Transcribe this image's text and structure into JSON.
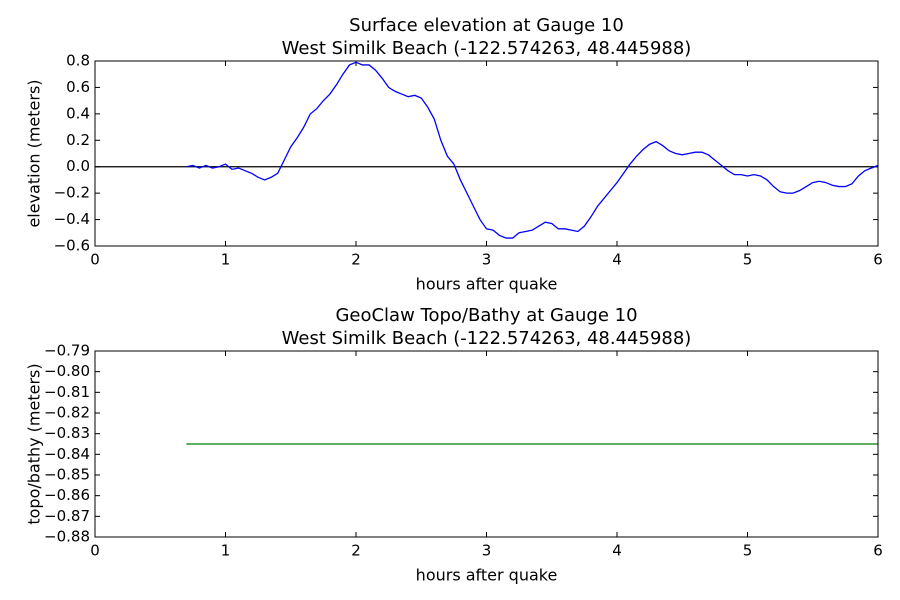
{
  "chart_data": [
    {
      "type": "line",
      "title": "Surface elevation at Gauge 10",
      "subtitle": "West Similk Beach  (-122.574263, 48.445988)",
      "xlabel": "hours after quake",
      "ylabel": "elevation (meters)",
      "xlim": [
        0,
        6
      ],
      "xticks": [
        0,
        1,
        2,
        3,
        4,
        5,
        6
      ],
      "ylim": [
        -0.6,
        0.8
      ],
      "yticks": [
        {
          "value": -0.6,
          "label": "−0.6"
        },
        {
          "value": -0.4,
          "label": "−0.4"
        },
        {
          "value": -0.2,
          "label": "−0.2"
        },
        {
          "value": 0,
          "label": "0.0"
        },
        0.2,
        0.4,
        0.6,
        0.8
      ],
      "hline": 0,
      "series": [
        {
          "color": "#0000ff",
          "x": [
            0.7,
            0.75,
            0.8,
            0.85,
            0.9,
            0.95,
            1.0,
            1.05,
            1.1,
            1.15,
            1.2,
            1.25,
            1.3,
            1.35,
            1.4,
            1.45,
            1.5,
            1.55,
            1.6,
            1.65,
            1.7,
            1.75,
            1.8,
            1.85,
            1.9,
            1.95,
            2.0,
            2.05,
            2.1,
            2.15,
            2.2,
            2.25,
            2.3,
            2.35,
            2.4,
            2.45,
            2.5,
            2.55,
            2.6,
            2.65,
            2.7,
            2.75,
            2.8,
            2.85,
            2.9,
            2.95,
            3.0,
            3.05,
            3.1,
            3.15,
            3.2,
            3.25,
            3.3,
            3.35,
            3.4,
            3.45,
            3.5,
            3.55,
            3.6,
            3.65,
            3.7,
            3.75,
            3.8,
            3.85,
            3.9,
            3.95,
            4.0,
            4.05,
            4.1,
            4.15,
            4.2,
            4.25,
            4.3,
            4.35,
            4.4,
            4.45,
            4.5,
            4.55,
            4.6,
            4.65,
            4.7,
            4.75,
            4.8,
            4.85,
            4.9,
            4.95,
            5.0,
            5.05,
            5.1,
            5.15,
            5.2,
            5.25,
            5.3,
            5.35,
            5.4,
            5.45,
            5.5,
            5.55,
            5.6,
            5.65,
            5.7,
            5.75,
            5.8,
            5.85,
            5.9,
            5.95,
            6.0
          ],
          "values": [
            0.0,
            0.01,
            -0.01,
            0.01,
            -0.01,
            0.0,
            0.02,
            -0.02,
            -0.01,
            -0.03,
            -0.05,
            -0.08,
            -0.1,
            -0.08,
            -0.05,
            0.05,
            0.15,
            0.22,
            0.3,
            0.4,
            0.44,
            0.5,
            0.55,
            0.62,
            0.7,
            0.77,
            0.79,
            0.77,
            0.77,
            0.73,
            0.67,
            0.6,
            0.57,
            0.55,
            0.53,
            0.54,
            0.52,
            0.45,
            0.36,
            0.2,
            0.08,
            0.02,
            -0.1,
            -0.2,
            -0.3,
            -0.4,
            -0.47,
            -0.48,
            -0.52,
            -0.54,
            -0.54,
            -0.5,
            -0.49,
            -0.48,
            -0.45,
            -0.42,
            -0.43,
            -0.47,
            -0.47,
            -0.48,
            -0.49,
            -0.45,
            -0.38,
            -0.3,
            -0.24,
            -0.18,
            -0.12,
            -0.05,
            0.02,
            0.08,
            0.13,
            0.17,
            0.19,
            0.16,
            0.12,
            0.1,
            0.09,
            0.1,
            0.11,
            0.11,
            0.09,
            0.05,
            0.01,
            -0.03,
            -0.06,
            -0.06,
            -0.07,
            -0.06,
            -0.07,
            -0.1,
            -0.15,
            -0.19,
            -0.2,
            -0.2,
            -0.18,
            -0.15,
            -0.12,
            -0.11,
            -0.12,
            -0.14,
            -0.15,
            -0.15,
            -0.13,
            -0.07,
            -0.03,
            -0.01,
            0.01
          ]
        }
      ]
    },
    {
      "type": "line",
      "title": "GeoClaw Topo/Bathy at Gauge 10",
      "subtitle": "West Similk Beach  (-122.574263, 48.445988)",
      "xlabel": "hours after quake",
      "ylabel": "topo/bathy (meters)",
      "xlim": [
        0,
        6
      ],
      "xticks": [
        0,
        1,
        2,
        3,
        4,
        5,
        6
      ],
      "ylim": [
        -0.88,
        -0.79
      ],
      "yticks": [
        {
          "value": -0.88,
          "label": "−0.88"
        },
        {
          "value": -0.87,
          "label": "−0.87"
        },
        {
          "value": -0.86,
          "label": "−0.86"
        },
        {
          "value": -0.85,
          "label": "−0.85"
        },
        {
          "value": -0.84,
          "label": "−0.84"
        },
        {
          "value": -0.83,
          "label": "−0.83"
        },
        {
          "value": -0.82,
          "label": "−0.82"
        },
        {
          "value": -0.81,
          "label": "−0.81"
        },
        {
          "value": -0.8,
          "label": "−0.80"
        },
        {
          "value": -0.79,
          "label": "−0.79"
        }
      ],
      "series": [
        {
          "color": "#008000",
          "x": [
            0.7,
            6.0
          ],
          "values": [
            -0.835,
            -0.835
          ]
        }
      ]
    }
  ]
}
